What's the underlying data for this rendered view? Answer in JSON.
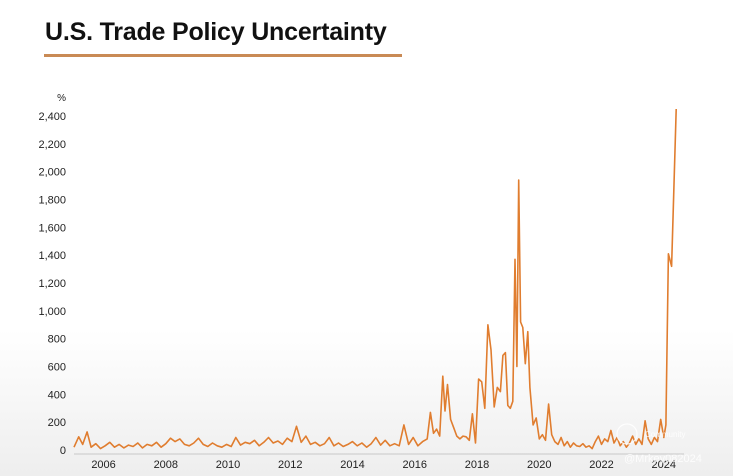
{
  "page": {
    "title": "U.S. Trade Policy Uncertainty",
    "accent_color": "#c98a55",
    "line_color": "#e07d2f"
  },
  "watermark": {
    "community": "Community",
    "handle": "@Mrkey082024"
  },
  "chart_data": {
    "type": "line",
    "title": "U.S. Trade Policy Uncertainty",
    "xlabel": "",
    "ylabel": "%",
    "ylim": [
      0,
      2400
    ],
    "xlim": [
      2005.5,
      2025.1
    ],
    "yticks": [
      0,
      200,
      400,
      600,
      800,
      1000,
      1200,
      1400,
      1600,
      1800,
      2000,
      2200,
      2400
    ],
    "ytick_labels": [
      "0",
      "200",
      "400",
      "600",
      "800",
      "1,000",
      "1,200",
      "1,400",
      "1,600",
      "1,800",
      "2,000",
      "2,200",
      "2,400"
    ],
    "xticks": [
      2006,
      2008,
      2010,
      2012,
      2014,
      2016,
      2018,
      2020,
      2022,
      2024
    ],
    "xtick_labels": [
      "2006",
      "2008",
      "2010",
      "2012",
      "2014",
      "2016",
      "2018",
      "2020",
      "2022",
      "2024"
    ],
    "grid": false,
    "series": [
      {
        "name": "U.S. Trade Policy Uncertainty",
        "points": [
          [
            2005.5,
            20
          ],
          [
            2005.65,
            95
          ],
          [
            2005.78,
            40
          ],
          [
            2005.92,
            130
          ],
          [
            2006.05,
            20
          ],
          [
            2006.2,
            45
          ],
          [
            2006.35,
            10
          ],
          [
            2006.5,
            30
          ],
          [
            2006.65,
            55
          ],
          [
            2006.8,
            20
          ],
          [
            2006.95,
            40
          ],
          [
            2007.1,
            15
          ],
          [
            2007.25,
            35
          ],
          [
            2007.4,
            25
          ],
          [
            2007.55,
            50
          ],
          [
            2007.7,
            15
          ],
          [
            2007.85,
            40
          ],
          [
            2008.0,
            30
          ],
          [
            2008.15,
            55
          ],
          [
            2008.3,
            20
          ],
          [
            2008.45,
            45
          ],
          [
            2008.6,
            85
          ],
          [
            2008.75,
            60
          ],
          [
            2008.9,
            80
          ],
          [
            2009.05,
            40
          ],
          [
            2009.2,
            30
          ],
          [
            2009.35,
            50
          ],
          [
            2009.5,
            85
          ],
          [
            2009.65,
            40
          ],
          [
            2009.8,
            25
          ],
          [
            2009.95,
            50
          ],
          [
            2010.1,
            30
          ],
          [
            2010.25,
            20
          ],
          [
            2010.4,
            40
          ],
          [
            2010.55,
            25
          ],
          [
            2010.7,
            90
          ],
          [
            2010.85,
            35
          ],
          [
            2011.0,
            55
          ],
          [
            2011.15,
            45
          ],
          [
            2011.3,
            70
          ],
          [
            2011.45,
            30
          ],
          [
            2011.6,
            55
          ],
          [
            2011.75,
            90
          ],
          [
            2011.9,
            50
          ],
          [
            2012.05,
            65
          ],
          [
            2012.2,
            40
          ],
          [
            2012.35,
            85
          ],
          [
            2012.5,
            60
          ],
          [
            2012.65,
            170
          ],
          [
            2012.8,
            55
          ],
          [
            2012.95,
            100
          ],
          [
            2013.1,
            40
          ],
          [
            2013.25,
            55
          ],
          [
            2013.4,
            30
          ],
          [
            2013.55,
            45
          ],
          [
            2013.7,
            90
          ],
          [
            2013.85,
            30
          ],
          [
            2014.0,
            50
          ],
          [
            2014.15,
            25
          ],
          [
            2014.3,
            40
          ],
          [
            2014.45,
            60
          ],
          [
            2014.6,
            30
          ],
          [
            2014.75,
            50
          ],
          [
            2014.9,
            20
          ],
          [
            2015.05,
            45
          ],
          [
            2015.2,
            90
          ],
          [
            2015.35,
            35
          ],
          [
            2015.5,
            70
          ],
          [
            2015.65,
            30
          ],
          [
            2015.8,
            45
          ],
          [
            2015.95,
            30
          ],
          [
            2016.1,
            180
          ],
          [
            2016.25,
            40
          ],
          [
            2016.4,
            90
          ],
          [
            2016.55,
            30
          ],
          [
            2016.7,
            60
          ],
          [
            2016.85,
            80
          ],
          [
            2016.95,
            270
          ],
          [
            2017.05,
            120
          ],
          [
            2017.15,
            150
          ],
          [
            2017.25,
            100
          ],
          [
            2017.35,
            530
          ],
          [
            2017.42,
            280
          ],
          [
            2017.5,
            470
          ],
          [
            2017.6,
            220
          ],
          [
            2017.7,
            160
          ],
          [
            2017.8,
            100
          ],
          [
            2017.9,
            80
          ],
          [
            2018.0,
            100
          ],
          [
            2018.1,
            95
          ],
          [
            2018.2,
            70
          ],
          [
            2018.3,
            260
          ],
          [
            2018.4,
            50
          ],
          [
            2018.5,
            510
          ],
          [
            2018.6,
            490
          ],
          [
            2018.7,
            300
          ],
          [
            2018.8,
            900
          ],
          [
            2018.9,
            720
          ],
          [
            2019.0,
            310
          ],
          [
            2019.1,
            450
          ],
          [
            2019.2,
            420
          ],
          [
            2019.28,
            680
          ],
          [
            2019.36,
            700
          ],
          [
            2019.44,
            320
          ],
          [
            2019.52,
            300
          ],
          [
            2019.6,
            350
          ],
          [
            2019.67,
            1370
          ],
          [
            2019.73,
            600
          ],
          [
            2019.79,
            1940
          ],
          [
            2019.85,
            920
          ],
          [
            2019.92,
            880
          ],
          [
            2020.0,
            620
          ],
          [
            2020.08,
            850
          ],
          [
            2020.15,
            450
          ],
          [
            2020.25,
            180
          ],
          [
            2020.35,
            230
          ],
          [
            2020.45,
            80
          ],
          [
            2020.55,
            110
          ],
          [
            2020.65,
            70
          ],
          [
            2020.75,
            330
          ],
          [
            2020.85,
            110
          ],
          [
            2020.95,
            60
          ],
          [
            2021.05,
            40
          ],
          [
            2021.15,
            90
          ],
          [
            2021.25,
            30
          ],
          [
            2021.35,
            60
          ],
          [
            2021.45,
            20
          ],
          [
            2021.55,
            50
          ],
          [
            2021.65,
            30
          ],
          [
            2021.75,
            25
          ],
          [
            2021.85,
            45
          ],
          [
            2021.95,
            20
          ],
          [
            2022.05,
            30
          ],
          [
            2022.15,
            10
          ],
          [
            2022.25,
            60
          ],
          [
            2022.35,
            100
          ],
          [
            2022.45,
            40
          ],
          [
            2022.55,
            80
          ],
          [
            2022.65,
            60
          ],
          [
            2022.75,
            140
          ],
          [
            2022.85,
            50
          ],
          [
            2022.95,
            90
          ],
          [
            2023.05,
            30
          ],
          [
            2023.15,
            60
          ],
          [
            2023.25,
            20
          ],
          [
            2023.35,
            50
          ],
          [
            2023.45,
            100
          ],
          [
            2023.55,
            40
          ],
          [
            2023.65,
            80
          ],
          [
            2023.75,
            40
          ],
          [
            2023.85,
            210
          ],
          [
            2023.95,
            80
          ],
          [
            2024.05,
            40
          ],
          [
            2024.15,
            90
          ],
          [
            2024.25,
            60
          ],
          [
            2024.35,
            220
          ],
          [
            2024.45,
            90
          ],
          [
            2024.52,
            180
          ],
          [
            2024.6,
            1410
          ],
          [
            2024.7,
            1320
          ],
          [
            2024.85,
            2450
          ]
        ]
      }
    ]
  }
}
